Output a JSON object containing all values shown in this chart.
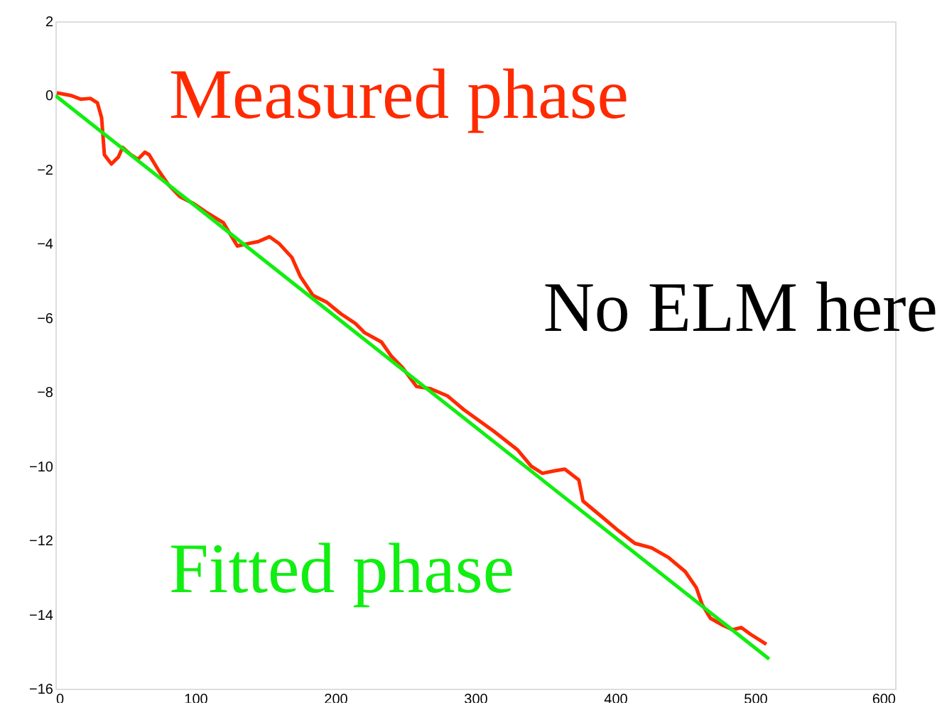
{
  "chart_data": {
    "type": "line",
    "xlim": [
      0,
      600
    ],
    "ylim": [
      -16,
      2
    ],
    "xticks": [
      0,
      100,
      200,
      300,
      400,
      500,
      600
    ],
    "yticks": [
      -16,
      -14,
      -12,
      -10,
      -8,
      -6,
      -4,
      -2,
      0,
      2
    ],
    "grid": false,
    "marker": "none",
    "line_style": "solid",
    "annotations": [
      "No ELM here"
    ],
    "series": [
      {
        "name": "Measured phase",
        "color": "#ff2a00",
        "x": [
          1,
          11,
          18,
          25,
          30,
          33,
          35,
          40,
          45,
          48,
          54,
          59,
          64,
          67,
          74,
          81,
          89,
          99,
          109,
          120,
          126,
          130,
          137,
          145,
          153,
          160,
          169,
          175,
          184,
          194,
          204,
          214,
          221,
          233,
          240,
          248,
          258,
          268,
          280,
          292,
          313,
          330,
          340,
          348,
          357,
          364,
          374,
          377,
          391,
          401,
          414,
          426,
          438,
          450,
          458,
          462,
          468,
          477,
          484,
          490,
          497,
          508
        ],
        "values": [
          0.07,
          0,
          -0.1,
          -0.08,
          -0.2,
          -0.6,
          -1.6,
          -1.85,
          -1.66,
          -1.4,
          -1.6,
          -1.72,
          -1.53,
          -1.6,
          -2.04,
          -2.42,
          -2.73,
          -2.92,
          -3.18,
          -3.43,
          -3.81,
          -4.06,
          -4.0,
          -3.94,
          -3.81,
          -4.0,
          -4.37,
          -4.88,
          -5.39,
          -5.58,
          -5.89,
          -6.14,
          -6.4,
          -6.65,
          -7.03,
          -7.34,
          -7.85,
          -7.91,
          -8.1,
          -8.48,
          -9.05,
          -9.55,
          -10.0,
          -10.19,
          -10.12,
          -10.08,
          -10.37,
          -10.94,
          -11.38,
          -11.7,
          -12.08,
          -12.2,
          -12.46,
          -12.84,
          -13.28,
          -13.72,
          -14.1,
          -14.29,
          -14.41,
          -14.35,
          -14.54,
          -14.8
        ]
      },
      {
        "name": "Fitted phase",
        "color": "#11ee11",
        "x": [
          0,
          510
        ],
        "values": [
          0,
          -15.2
        ]
      }
    ]
  }
}
